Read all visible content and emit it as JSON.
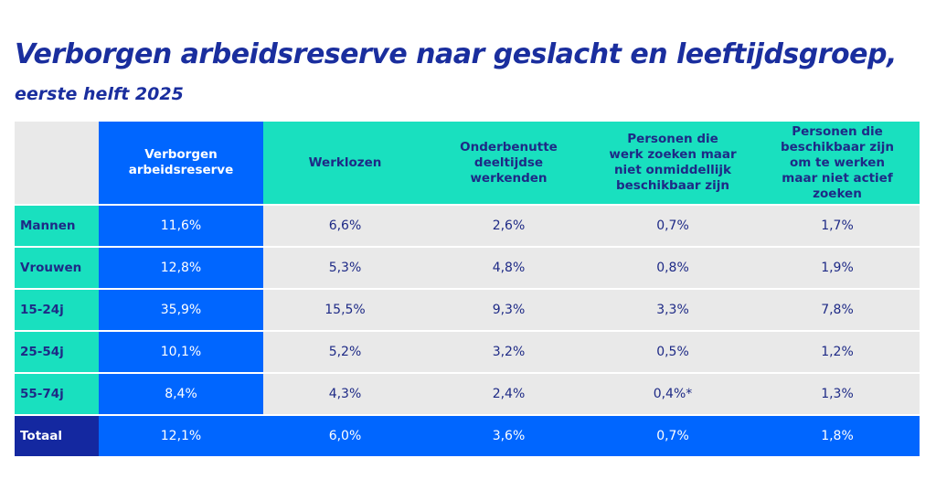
{
  "title": "Verborgen arbeidsreserve naar geslacht en leeftijdsgroep,",
  "subtitle": "eerste helft 2025",
  "colors": {
    "blue": "#0066ff",
    "teal": "#19e0bf",
    "grey": "#e9e9e9",
    "navy": "#1428a0"
  },
  "chart_data": {
    "type": "table",
    "columns": [
      "Verborgen arbeidsreserve",
      "Werklozen",
      "Onderbenutte deeltijdse werkenden",
      "Personen die werk zoeken maar niet onmiddellijk beschikbaar zijn",
      "Personen die beschikbaar zijn om te werken maar niet actief zoeken"
    ],
    "rows": [
      {
        "label": "Mannen",
        "values": [
          "11,6%",
          "6,6%",
          "2,6%",
          "0,7%",
          "1,7%"
        ]
      },
      {
        "label": "Vrouwen",
        "values": [
          "12,8%",
          "5,3%",
          "4,8%",
          "0,8%",
          "1,9%"
        ]
      },
      {
        "label": "15-24j",
        "values": [
          "35,9%",
          "15,5%",
          "9,3%",
          "3,3%",
          "7,8%"
        ]
      },
      {
        "label": "25-54j",
        "values": [
          "10,1%",
          "5,2%",
          "3,2%",
          "0,5%",
          "1,2%"
        ]
      },
      {
        "label": "55-74j",
        "values": [
          "8,4%",
          "4,3%",
          "2,4%",
          "0,4%*",
          "1,3%"
        ]
      },
      {
        "label": "Totaal",
        "values": [
          "12,1%",
          "6,0%",
          "3,6%",
          "0,7%",
          "1,8%"
        ]
      }
    ]
  }
}
